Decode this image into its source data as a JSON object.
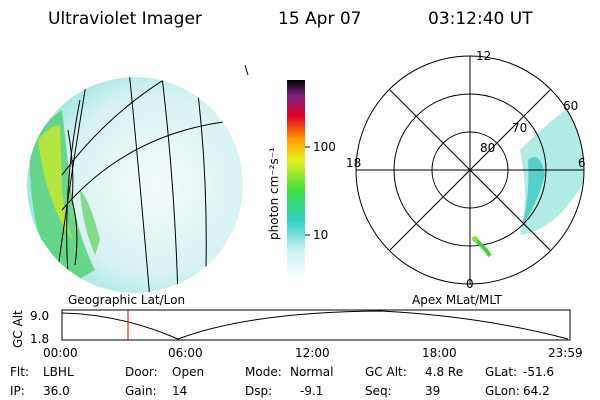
{
  "header": {
    "title": "Ultraviolet Imager",
    "date": "15 Apr 07",
    "time": "03:12:40 UT"
  },
  "colorbar": {
    "label": "photon cm⁻²s⁻¹",
    "ticks": [
      "100",
      "10"
    ]
  },
  "left_panel": {
    "label": "Geographic Lat/Lon"
  },
  "right_panel": {
    "label": "Apex MLat/MLT",
    "mlt_labels": [
      "12",
      "18",
      "6",
      "0"
    ],
    "lat_labels": [
      "60",
      "70",
      "80"
    ]
  },
  "altitude_plot": {
    "ylabel": "GC Alt",
    "yticks": [
      "9.0",
      "1.8"
    ],
    "xticks": [
      "00:00",
      "06:00",
      "12:00",
      "18:00",
      "23:59"
    ]
  },
  "footer": {
    "rows": [
      [
        {
          "label": "Flt:",
          "value": "LBHL"
        },
        {
          "label": "Door:",
          "value": "Open"
        },
        {
          "label": "Mode:",
          "value": "Normal"
        },
        {
          "label": "GC Alt:",
          "value": "4.8 Re"
        },
        {
          "label": "GLat:",
          "value": "-51.6"
        }
      ],
      [
        {
          "label": "IP:",
          "value": "36.0"
        },
        {
          "label": "Gain:",
          "value": "14"
        },
        {
          "label": "Dsp:",
          "value": "-9.1"
        },
        {
          "label": "Seq:",
          "value": "39"
        },
        {
          "label": "GLon:",
          "value": "64.2"
        }
      ]
    ]
  }
}
